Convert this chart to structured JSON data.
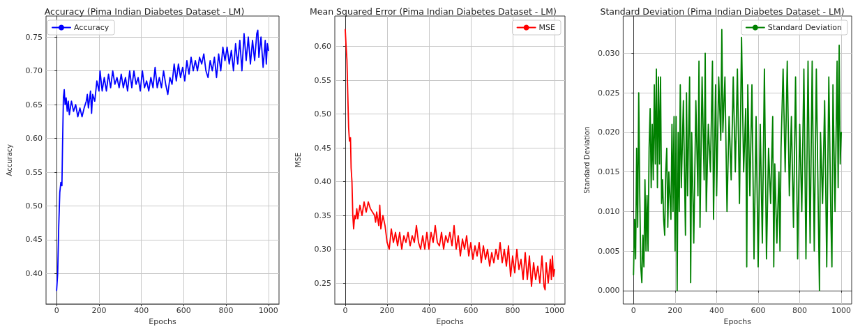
{
  "chart_data": [
    {
      "type": "line",
      "title": "Accuracy (Pima Indian Diabetes Dataset - LM)",
      "xlabel": "Epochs",
      "ylabel": "Accuracy",
      "xlim": [
        -50,
        1050
      ],
      "xticks": [
        0,
        200,
        400,
        600,
        800,
        1000
      ],
      "ylim": [
        0.355,
        0.781
      ],
      "yticks": [
        {
          "value": 0.4,
          "label": "0.40"
        },
        {
          "value": 0.45,
          "label": "0.45"
        },
        {
          "value": 0.5,
          "label": "0.50"
        },
        {
          "value": 0.55,
          "label": "0.55"
        },
        {
          "value": 0.6,
          "label": "0.60"
        },
        {
          "value": 0.65,
          "label": "0.65"
        },
        {
          "value": 0.7,
          "label": "0.70"
        },
        {
          "value": 0.75,
          "label": "0.75"
        }
      ],
      "grid": true,
      "legend": "top left",
      "marker": "none",
      "line_style": "solid",
      "series": [
        {
          "name": "Accuracy",
          "color": "#0000ff",
          "x": [
            0,
            5,
            10,
            15,
            20,
            25,
            28,
            32,
            36,
            40,
            45,
            50,
            55,
            60,
            70,
            80,
            90,
            100,
            110,
            120,
            130,
            140,
            145,
            150,
            160,
            165,
            170,
            180,
            190,
            200,
            205,
            215,
            225,
            235,
            245,
            255,
            265,
            275,
            285,
            295,
            305,
            315,
            325,
            335,
            345,
            355,
            365,
            375,
            385,
            395,
            405,
            415,
            425,
            435,
            445,
            455,
            465,
            475,
            485,
            495,
            505,
            515,
            525,
            535,
            545,
            555,
            565,
            575,
            585,
            595,
            605,
            615,
            625,
            635,
            645,
            655,
            665,
            675,
            685,
            695,
            705,
            715,
            725,
            735,
            745,
            755,
            765,
            775,
            785,
            795,
            805,
            815,
            825,
            835,
            845,
            855,
            865,
            875,
            885,
            895,
            905,
            915,
            925,
            935,
            945,
            950,
            955,
            965,
            975,
            985,
            990,
            995,
            1000
          ],
          "values": [
            0.375,
            0.4,
            0.47,
            0.52,
            0.535,
            0.53,
            0.59,
            0.66,
            0.672,
            0.65,
            0.66,
            0.64,
            0.655,
            0.635,
            0.655,
            0.64,
            0.65,
            0.632,
            0.645,
            0.632,
            0.645,
            0.655,
            0.665,
            0.645,
            0.67,
            0.637,
            0.665,
            0.655,
            0.685,
            0.67,
            0.7,
            0.67,
            0.69,
            0.67,
            0.695,
            0.675,
            0.7,
            0.68,
            0.69,
            0.675,
            0.695,
            0.675,
            0.69,
            0.67,
            0.7,
            0.675,
            0.7,
            0.68,
            0.69,
            0.67,
            0.7,
            0.675,
            0.685,
            0.67,
            0.69,
            0.675,
            0.705,
            0.675,
            0.69,
            0.675,
            0.7,
            0.68,
            0.665,
            0.69,
            0.68,
            0.71,
            0.685,
            0.71,
            0.69,
            0.705,
            0.685,
            0.715,
            0.695,
            0.72,
            0.7,
            0.715,
            0.7,
            0.72,
            0.71,
            0.725,
            0.7,
            0.69,
            0.715,
            0.7,
            0.72,
            0.69,
            0.725,
            0.7,
            0.735,
            0.715,
            0.735,
            0.71,
            0.73,
            0.7,
            0.74,
            0.71,
            0.745,
            0.7,
            0.755,
            0.715,
            0.75,
            0.71,
            0.745,
            0.715,
            0.755,
            0.76,
            0.72,
            0.75,
            0.705,
            0.745,
            0.71,
            0.74,
            0.73
          ]
        }
      ]
    },
    {
      "type": "line",
      "title": "Mean Squared Error (Pima Indian Diabetes Dataset - LM)",
      "xlabel": "Epochs",
      "ylabel": "MSE",
      "xlim": [
        -50,
        1050
      ],
      "xticks": [
        0,
        200,
        400,
        600,
        800,
        1000
      ],
      "ylim": [
        0.219,
        0.645
      ],
      "yticks": [
        {
          "value": 0.25,
          "label": "0.25"
        },
        {
          "value": 0.3,
          "label": "0.30"
        },
        {
          "value": 0.35,
          "label": "0.35"
        },
        {
          "value": 0.4,
          "label": "0.40"
        },
        {
          "value": 0.45,
          "label": "0.45"
        },
        {
          "value": 0.5,
          "label": "0.50"
        },
        {
          "value": 0.55,
          "label": "0.55"
        },
        {
          "value": 0.6,
          "label": "0.60"
        }
      ],
      "grid": true,
      "legend": "top right",
      "marker": "none",
      "line_style": "solid",
      "series": [
        {
          "name": "MSE",
          "color": "#ff0000",
          "x": [
            0,
            4,
            8,
            12,
            16,
            20,
            25,
            28,
            32,
            36,
            40,
            45,
            50,
            55,
            60,
            70,
            80,
            90,
            100,
            110,
            120,
            130,
            140,
            145,
            150,
            160,
            165,
            170,
            180,
            190,
            200,
            210,
            220,
            230,
            240,
            250,
            260,
            270,
            280,
            290,
            300,
            310,
            320,
            330,
            340,
            350,
            360,
            370,
            380,
            390,
            400,
            410,
            420,
            430,
            440,
            450,
            460,
            470,
            480,
            490,
            500,
            510,
            520,
            530,
            540,
            550,
            560,
            570,
            580,
            590,
            600,
            610,
            620,
            630,
            640,
            650,
            660,
            670,
            680,
            690,
            700,
            710,
            720,
            730,
            740,
            750,
            760,
            770,
            780,
            790,
            800,
            810,
            820,
            830,
            840,
            850,
            860,
            870,
            880,
            890,
            900,
            910,
            920,
            930,
            940,
            950,
            955,
            960,
            970,
            980,
            985,
            990,
            995,
            1000
          ],
          "values": [
            0.625,
            0.6,
            0.58,
            0.53,
            0.48,
            0.46,
            0.465,
            0.42,
            0.4,
            0.35,
            0.33,
            0.35,
            0.345,
            0.36,
            0.345,
            0.365,
            0.35,
            0.37,
            0.355,
            0.37,
            0.36,
            0.355,
            0.35,
            0.34,
            0.355,
            0.335,
            0.365,
            0.33,
            0.35,
            0.335,
            0.31,
            0.3,
            0.33,
            0.31,
            0.325,
            0.305,
            0.325,
            0.3,
            0.32,
            0.31,
            0.325,
            0.305,
            0.32,
            0.31,
            0.335,
            0.31,
            0.3,
            0.32,
            0.3,
            0.325,
            0.3,
            0.325,
            0.31,
            0.335,
            0.31,
            0.305,
            0.325,
            0.3,
            0.32,
            0.31,
            0.325,
            0.305,
            0.335,
            0.3,
            0.32,
            0.29,
            0.315,
            0.3,
            0.32,
            0.29,
            0.31,
            0.285,
            0.305,
            0.29,
            0.31,
            0.28,
            0.305,
            0.285,
            0.3,
            0.275,
            0.295,
            0.28,
            0.3,
            0.285,
            0.31,
            0.28,
            0.3,
            0.275,
            0.305,
            0.26,
            0.29,
            0.265,
            0.3,
            0.27,
            0.285,
            0.255,
            0.295,
            0.255,
            0.29,
            0.245,
            0.28,
            0.255,
            0.275,
            0.25,
            0.29,
            0.245,
            0.24,
            0.28,
            0.25,
            0.285,
            0.255,
            0.29,
            0.26,
            0.27
          ]
        }
      ]
    },
    {
      "type": "line",
      "title": "Standard Deviation (Pima Indian Diabetes Dataset - LM)",
      "xlabel": "Epochs",
      "ylabel": "Standard Deviation",
      "xlim": [
        -50,
        1050
      ],
      "xticks": [
        0,
        200,
        400,
        600,
        800,
        1000
      ],
      "ylim": [
        -0.0017,
        0.0347
      ],
      "yticks": [
        {
          "value": 0,
          "label": "0.000"
        },
        {
          "value": 0.005,
          "label": "0.005"
        },
        {
          "value": 0.01,
          "label": "0.010"
        },
        {
          "value": 0.015,
          "label": "0.015"
        },
        {
          "value": 0.02,
          "label": "0.020"
        },
        {
          "value": 0.025,
          "label": "0.025"
        },
        {
          "value": 0.03,
          "label": "0.030"
        }
      ],
      "grid": true,
      "legend": "top right",
      "marker": "none",
      "line_style": "solid",
      "series": [
        {
          "name": "Standard Deviation",
          "color": "#008000",
          "x": [
            0,
            5,
            10,
            15,
            20,
            25,
            30,
            35,
            40,
            45,
            50,
            55,
            60,
            65,
            70,
            75,
            80,
            85,
            90,
            95,
            100,
            105,
            110,
            115,
            120,
            125,
            130,
            135,
            140,
            145,
            150,
            155,
            160,
            165,
            170,
            180,
            185,
            190,
            195,
            200,
            205,
            210,
            215,
            220,
            225,
            230,
            240,
            250,
            255,
            260,
            270,
            275,
            280,
            290,
            300,
            310,
            315,
            320,
            330,
            340,
            345,
            350,
            360,
            370,
            380,
            385,
            395,
            400,
            410,
            420,
            425,
            430,
            440,
            450,
            460,
            470,
            480,
            490,
            500,
            510,
            520,
            530,
            540,
            545,
            550,
            560,
            570,
            580,
            590,
            600,
            610,
            620,
            630,
            640,
            650,
            660,
            670,
            675,
            680,
            690,
            700,
            705,
            710,
            720,
            730,
            740,
            750,
            760,
            770,
            780,
            790,
            800,
            810,
            820,
            830,
            840,
            850,
            860,
            870,
            880,
            890,
            895,
            900,
            910,
            920,
            930,
            940,
            950,
            955,
            960,
            970,
            980,
            985,
            990,
            995,
            1000
          ],
          "values": [
            0.002,
            0.009,
            0.004,
            0.018,
            0.008,
            0.025,
            0.012,
            0.003,
            0.001,
            0.007,
            0.003,
            0.014,
            0.005,
            0.012,
            0.005,
            0.018,
            0.023,
            0.013,
            0.021,
            0.014,
            0.026,
            0.016,
            0.028,
            0.013,
            0.027,
            0.016,
            0.027,
            0.011,
            0.014,
            0.009,
            0.007,
            0.015,
            0.018,
            0.008,
            0.015,
            0.009,
            0.021,
            0.01,
            0.022,
            0.005,
            0.022,
            0.0,
            0.02,
            0.01,
            0.026,
            0.013,
            0.024,
            0.007,
            0.025,
            0.012,
            0.027,
            0.001,
            0.02,
            0.006,
            0.024,
            0.012,
            0.029,
            0.008,
            0.027,
            0.014,
            0.03,
            0.01,
            0.021,
            0.015,
            0.029,
            0.009,
            0.026,
            0.012,
            0.027,
            0.019,
            0.033,
            0.02,
            0.027,
            0.01,
            0.022,
            0.014,
            0.027,
            0.015,
            0.028,
            0.011,
            0.032,
            0.015,
            0.023,
            0.003,
            0.026,
            0.012,
            0.026,
            0.004,
            0.022,
            0.003,
            0.021,
            0.006,
            0.028,
            0.004,
            0.018,
            0.011,
            0.022,
            0.003,
            0.016,
            0.006,
            0.015,
            0.005,
            0.018,
            0.028,
            0.015,
            0.029,
            0.012,
            0.022,
            0.008,
            0.027,
            0.004,
            0.021,
            0.01,
            0.028,
            0.004,
            0.029,
            0.006,
            0.029,
            0.005,
            0.028,
            0.009,
            0.0,
            0.02,
            0.011,
            0.024,
            0.003,
            0.027,
            0.009,
            0.003,
            0.026,
            0.01,
            0.029,
            0.013,
            0.031,
            0.016,
            0.02
          ]
        }
      ]
    }
  ]
}
